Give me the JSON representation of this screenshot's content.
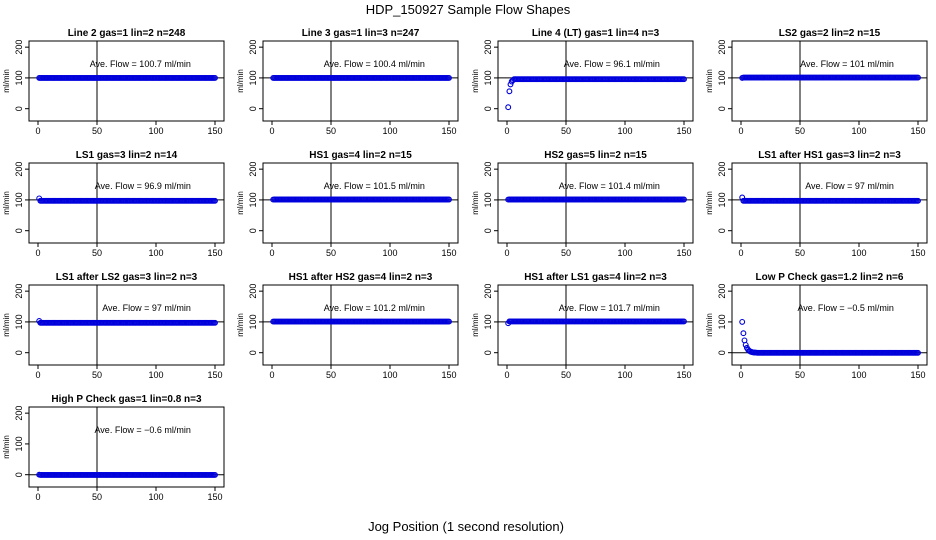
{
  "title": "HDP_150927  Sample Flow Shapes",
  "xlabel": "Jog Position (1 second resolution)",
  "colors": {
    "points": "#0000dd",
    "axes": "#000000"
  },
  "chart_data": [
    {
      "type": "scatter",
      "title": "Line 2 gas=1 lin=2 n=248",
      "annotation": "Ave. Flow = 100.7  ml/min",
      "ylabel": "ml/min",
      "xlim": [
        0,
        150
      ],
      "ylim": [
        -40,
        220
      ],
      "xticks": [
        0,
        50,
        100,
        150
      ],
      "yticks": [
        0,
        100,
        200
      ],
      "vline": 50,
      "hline": 100,
      "shape": "flat",
      "start_value": 100,
      "level": 100
    },
    {
      "type": "scatter",
      "title": "Line 3 gas=1 lin=3 n=247",
      "annotation": "Ave. Flow = 100.4  ml/min",
      "ylabel": "ml/min",
      "xlim": [
        0,
        150
      ],
      "ylim": [
        -40,
        220
      ],
      "xticks": [
        0,
        50,
        100,
        150
      ],
      "yticks": [
        0,
        100,
        200
      ],
      "vline": 50,
      "hline": 100,
      "shape": "flat",
      "start_value": 100,
      "level": 100
    },
    {
      "type": "scatter",
      "title": "Line 4 (LT) gas=1 lin=4 n=3",
      "annotation": "Ave. Flow = 96.1  ml/min",
      "ylabel": "ml/min",
      "xlim": [
        0,
        150
      ],
      "ylim": [
        -40,
        220
      ],
      "xticks": [
        0,
        50,
        100,
        150
      ],
      "yticks": [
        0,
        100,
        200
      ],
      "vline": 50,
      "hline": 100,
      "shape": "rise",
      "start_value": 5,
      "level": 96
    },
    {
      "type": "scatter",
      "title": "LS2 gas=2 lin=2 n=15",
      "annotation": "Ave. Flow = 101  ml/min",
      "ylabel": "ml/min",
      "xlim": [
        0,
        150
      ],
      "ylim": [
        -40,
        220
      ],
      "xticks": [
        0,
        50,
        100,
        150
      ],
      "yticks": [
        0,
        100,
        200
      ],
      "vline": 50,
      "hline": 100,
      "shape": "flat",
      "start_value": 100,
      "level": 101
    },
    {
      "type": "scatter",
      "title": "LS1 gas=3 lin=2 n=14",
      "annotation": "Ave. Flow = 96.9  ml/min",
      "ylabel": "ml/min",
      "xlim": [
        0,
        150
      ],
      "ylim": [
        -40,
        220
      ],
      "xticks": [
        0,
        50,
        100,
        150
      ],
      "yticks": [
        0,
        100,
        200
      ],
      "vline": 50,
      "hline": 100,
      "shape": "flat",
      "start_value": 105,
      "level": 97
    },
    {
      "type": "scatter",
      "title": "HS1 gas=4 lin=2 n=15",
      "annotation": "Ave. Flow = 101.5  ml/min",
      "ylabel": "ml/min",
      "xlim": [
        0,
        150
      ],
      "ylim": [
        -40,
        220
      ],
      "xticks": [
        0,
        50,
        100,
        150
      ],
      "yticks": [
        0,
        100,
        200
      ],
      "vline": 50,
      "hline": 100,
      "shape": "flat",
      "start_value": 101,
      "level": 101.5
    },
    {
      "type": "scatter",
      "title": "HS2 gas=5 lin=2 n=15",
      "annotation": "Ave. Flow = 101.4  ml/min",
      "ylabel": "ml/min",
      "xlim": [
        0,
        150
      ],
      "ylim": [
        -40,
        220
      ],
      "xticks": [
        0,
        50,
        100,
        150
      ],
      "yticks": [
        0,
        100,
        200
      ],
      "vline": 50,
      "hline": 100,
      "shape": "flat",
      "start_value": 101,
      "level": 101.4
    },
    {
      "type": "scatter",
      "title": "LS1 after HS1 gas=3 lin=2 n=3",
      "annotation": "Ave. Flow = 97  ml/min",
      "ylabel": "ml/min",
      "xlim": [
        0,
        150
      ],
      "ylim": [
        -40,
        220
      ],
      "xticks": [
        0,
        50,
        100,
        150
      ],
      "yticks": [
        0,
        100,
        200
      ],
      "vline": 50,
      "hline": 100,
      "shape": "flat",
      "start_value": 108,
      "level": 97
    },
    {
      "type": "scatter",
      "title": "LS1 after LS2 gas=3 lin=2 n=3",
      "annotation": "Ave. Flow = 97  ml/min",
      "ylabel": "ml/min",
      "xlim": [
        0,
        150
      ],
      "ylim": [
        -40,
        220
      ],
      "xticks": [
        0,
        50,
        100,
        150
      ],
      "yticks": [
        0,
        100,
        200
      ],
      "vline": 50,
      "hline": 100,
      "shape": "flat",
      "start_value": 103,
      "level": 97
    },
    {
      "type": "scatter",
      "title": "HS1 after HS2 gas=4 lin=2 n=3",
      "annotation": "Ave. Flow = 101.2  ml/min",
      "ylabel": "ml/min",
      "xlim": [
        0,
        150
      ],
      "ylim": [
        -40,
        220
      ],
      "xticks": [
        0,
        50,
        100,
        150
      ],
      "yticks": [
        0,
        100,
        200
      ],
      "vline": 50,
      "hline": 100,
      "shape": "flat",
      "start_value": 101,
      "level": 101.2
    },
    {
      "type": "scatter",
      "title": "HS1 after LS1 gas=4 lin=2 n=3",
      "annotation": "Ave. Flow = 101.7  ml/min",
      "ylabel": "ml/min",
      "xlim": [
        0,
        150
      ],
      "ylim": [
        -40,
        220
      ],
      "xticks": [
        0,
        50,
        100,
        150
      ],
      "yticks": [
        0,
        100,
        200
      ],
      "vline": 50,
      "hline": 100,
      "shape": "flat",
      "start_value": 96,
      "level": 101.7
    },
    {
      "type": "scatter",
      "title": "Low P Check gas=1.2 lin=2 n=6",
      "annotation": "Ave. Flow = −0.5  ml/min",
      "ylabel": "ml/min",
      "xlim": [
        0,
        150
      ],
      "ylim": [
        -40,
        220
      ],
      "xticks": [
        0,
        50,
        100,
        150
      ],
      "yticks": [
        0,
        100,
        200
      ],
      "vline": 50,
      "hline": 0,
      "shape": "decay",
      "start_value": 100,
      "level": -0.5
    },
    {
      "type": "scatter",
      "title": "High P Check gas=1 lin=0.8 n=3",
      "annotation": "Ave. Flow = −0.6  ml/min",
      "ylabel": "ml/min",
      "xlim": [
        0,
        150
      ],
      "ylim": [
        -40,
        220
      ],
      "xticks": [
        0,
        50,
        100,
        150
      ],
      "yticks": [
        0,
        100,
        200
      ],
      "vline": 50,
      "hline": 0,
      "shape": "flat",
      "start_value": 0,
      "level": -0.6
    }
  ]
}
